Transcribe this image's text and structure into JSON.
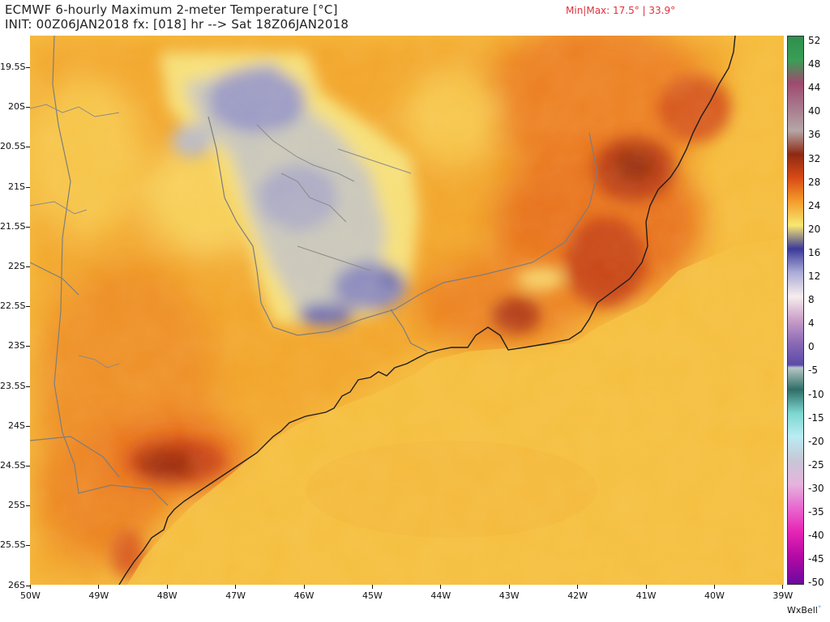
{
  "header": {
    "title": "ECMWF 6-hourly Maximum 2-meter Temperature [°C]",
    "init_line": "INIT: 00Z06JAN2018 fx: [018] hr --> Sat 18Z06JAN2018",
    "minmax": "Min|Max: 17.5° | 33.9°"
  },
  "map": {
    "lat_labels": [
      "19.5S",
      "20S",
      "20.5S",
      "21S",
      "21.5S",
      "22S",
      "22.5S",
      "23S",
      "23.5S",
      "24S",
      "24.5S",
      "25S",
      "25.5S",
      "26S"
    ],
    "lon_labels": [
      "50W",
      "49W",
      "48W",
      "47W",
      "46W",
      "45W",
      "44W",
      "43W",
      "42W",
      "41W",
      "40W",
      "39W"
    ]
  },
  "colorbar": {
    "labels": [
      "52",
      "48",
      "44",
      "40",
      "36",
      "32",
      "28",
      "24",
      "20",
      "16",
      "12",
      "8",
      "4",
      "0",
      "-5",
      "-10",
      "-15",
      "-20",
      "-25",
      "-30",
      "-35",
      "-40",
      "-45",
      "-50"
    ]
  },
  "credit": {
    "text": "WxBell",
    "dot": "°"
  },
  "colors": {
    "land_base": "#f6b635",
    "ocean_base": "#f5bf3e",
    "hot": "#e76a1a",
    "very_hot": "#a52c0e",
    "cool": "#f7de6a",
    "cold": "#b4b4c9",
    "coldest": "#6a6bb2",
    "coast": "#222222",
    "border": "#7a7a7a"
  }
}
